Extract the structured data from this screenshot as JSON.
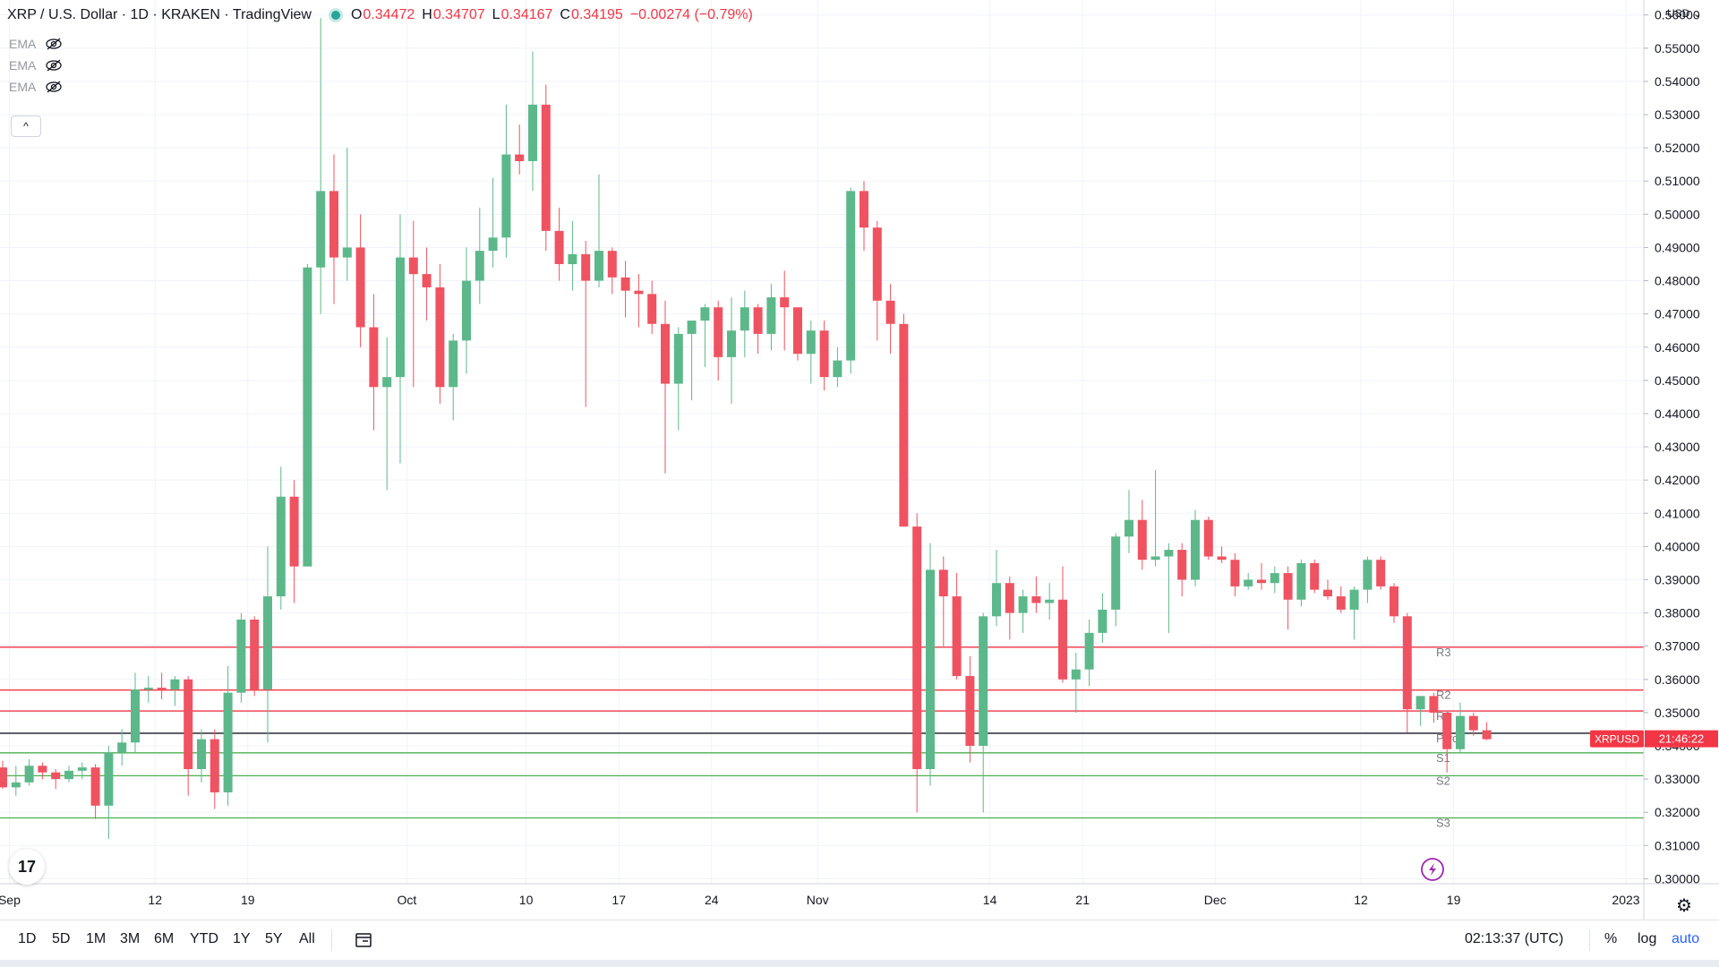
{
  "header": {
    "title": "XRP / U.S. Dollar · 1D · KRAKEN · TradingView",
    "ohlc": [
      {
        "k": "O",
        "v": "0.34472"
      },
      {
        "k": "H",
        "v": "0.34707"
      },
      {
        "k": "L",
        "v": "0.34167"
      },
      {
        "k": "C",
        "v": "0.34195"
      }
    ],
    "change": "−0.00274 (−0.79%)"
  },
  "indicators": [
    {
      "label": "EMA"
    },
    {
      "label": "EMA"
    },
    {
      "label": "EMA"
    }
  ],
  "collapse_label": "^",
  "logo_label": "17",
  "currency_label": "USD",
  "price_tag": {
    "symbol": "XRPUSD",
    "countdown": "21:46:22"
  },
  "bottom": {
    "ranges": [
      "1D",
      "5D",
      "1M",
      "3M",
      "6M",
      "YTD",
      "1Y",
      "5Y",
      "All"
    ],
    "time": "02:13:37 (UTC)",
    "percent": "%",
    "log": "log",
    "auto": "auto"
  },
  "colors": {
    "up": "#26a69a",
    "up_body": "#5cb88a",
    "down": "#f23645",
    "down_body": "#ef5361",
    "resistance": "#f23645",
    "support": "#4caf50",
    "pivot": "#131722",
    "accent": "#9c27b0"
  },
  "chart_data": {
    "type": "candlestick",
    "y_ticks": [
      "0.56000",
      "0.55000",
      "0.54000",
      "0.53000",
      "0.52000",
      "0.51000",
      "0.50000",
      "0.49000",
      "0.48000",
      "0.47000",
      "0.46000",
      "0.45000",
      "0.44000",
      "0.43000",
      "0.42000",
      "0.41000",
      "0.40000",
      "0.39000",
      "0.38000",
      "0.37000",
      "0.36000",
      "0.35000",
      "0.34000",
      "0.33000",
      "0.32000",
      "0.31000",
      "0.30000"
    ],
    "ylim": [
      0.2985,
      0.5645
    ],
    "x_ticks": [
      {
        "label": "Sep",
        "index": 0.5
      },
      {
        "label": "12",
        "index": 11.5
      },
      {
        "label": "19",
        "index": 18.5
      },
      {
        "label": "Oct",
        "index": 30.5
      },
      {
        "label": "10",
        "index": 39.5
      },
      {
        "label": "17",
        "index": 46.5
      },
      {
        "label": "24",
        "index": 53.5
      },
      {
        "label": "Nov",
        "index": 61.5
      },
      {
        "label": "14",
        "index": 74.5
      },
      {
        "label": "21",
        "index": 81.5
      },
      {
        "label": "Dec",
        "index": 91.5
      },
      {
        "label": "12",
        "index": 102.5
      },
      {
        "label": "19",
        "index": 109.5
      },
      {
        "label": "2023",
        "index": 122.5
      }
    ],
    "ohlc": [
      [
        0.3335,
        0.3355,
        0.327,
        0.3275
      ],
      [
        0.3275,
        0.334,
        0.325,
        0.329
      ],
      [
        0.329,
        0.336,
        0.328,
        0.334
      ],
      [
        0.334,
        0.335,
        0.33,
        0.332
      ],
      [
        0.332,
        0.333,
        0.327,
        0.33
      ],
      [
        0.33,
        0.334,
        0.329,
        0.3325
      ],
      [
        0.3325,
        0.335,
        0.33,
        0.3335
      ],
      [
        0.3335,
        0.3345,
        0.318,
        0.322
      ],
      [
        0.322,
        0.34,
        0.312,
        0.338
      ],
      [
        0.338,
        0.345,
        0.334,
        0.341
      ],
      [
        0.341,
        0.362,
        0.338,
        0.357
      ],
      [
        0.357,
        0.361,
        0.353,
        0.3575
      ],
      [
        0.3575,
        0.362,
        0.354,
        0.357
      ],
      [
        0.357,
        0.361,
        0.352,
        0.36
      ],
      [
        0.36,
        0.361,
        0.325,
        0.333
      ],
      [
        0.333,
        0.345,
        0.329,
        0.342
      ],
      [
        0.342,
        0.345,
        0.321,
        0.326
      ],
      [
        0.326,
        0.364,
        0.322,
        0.356
      ],
      [
        0.356,
        0.38,
        0.353,
        0.378
      ],
      [
        0.378,
        0.379,
        0.355,
        0.357
      ],
      [
        0.357,
        0.4,
        0.341,
        0.385
      ],
      [
        0.385,
        0.424,
        0.381,
        0.415
      ],
      [
        0.415,
        0.42,
        0.383,
        0.394
      ],
      [
        0.394,
        0.485,
        0.394,
        0.484
      ],
      [
        0.484,
        0.559,
        0.47,
        0.507
      ],
      [
        0.507,
        0.518,
        0.473,
        0.487
      ],
      [
        0.487,
        0.52,
        0.48,
        0.49
      ],
      [
        0.49,
        0.5,
        0.46,
        0.466
      ],
      [
        0.466,
        0.476,
        0.435,
        0.448
      ],
      [
        0.448,
        0.463,
        0.417,
        0.451
      ],
      [
        0.451,
        0.5,
        0.425,
        0.487
      ],
      [
        0.487,
        0.498,
        0.448,
        0.482
      ],
      [
        0.482,
        0.49,
        0.468,
        0.478
      ],
      [
        0.478,
        0.485,
        0.443,
        0.448
      ],
      [
        0.448,
        0.464,
        0.438,
        0.462
      ],
      [
        0.462,
        0.49,
        0.452,
        0.48
      ],
      [
        0.48,
        0.502,
        0.473,
        0.489
      ],
      [
        0.489,
        0.511,
        0.484,
        0.493
      ],
      [
        0.493,
        0.533,
        0.487,
        0.518
      ],
      [
        0.518,
        0.527,
        0.512,
        0.516
      ],
      [
        0.516,
        0.549,
        0.507,
        0.533
      ],
      [
        0.533,
        0.539,
        0.489,
        0.495
      ],
      [
        0.495,
        0.502,
        0.48,
        0.485
      ],
      [
        0.485,
        0.498,
        0.477,
        0.488
      ],
      [
        0.488,
        0.492,
        0.442,
        0.48
      ],
      [
        0.48,
        0.512,
        0.478,
        0.489
      ],
      [
        0.489,
        0.49,
        0.476,
        0.481
      ],
      [
        0.481,
        0.486,
        0.469,
        0.477
      ],
      [
        0.477,
        0.482,
        0.466,
        0.476
      ],
      [
        0.476,
        0.48,
        0.464,
        0.467
      ],
      [
        0.467,
        0.474,
        0.422,
        0.449
      ],
      [
        0.449,
        0.466,
        0.435,
        0.464
      ],
      [
        0.464,
        0.468,
        0.444,
        0.468
      ],
      [
        0.468,
        0.473,
        0.454,
        0.472
      ],
      [
        0.472,
        0.474,
        0.45,
        0.457
      ],
      [
        0.457,
        0.475,
        0.443,
        0.465
      ],
      [
        0.465,
        0.477,
        0.457,
        0.472
      ],
      [
        0.472,
        0.473,
        0.458,
        0.464
      ],
      [
        0.464,
        0.479,
        0.459,
        0.475
      ],
      [
        0.475,
        0.483,
        0.459,
        0.472
      ],
      [
        0.472,
        0.472,
        0.456,
        0.458
      ],
      [
        0.458,
        0.468,
        0.449,
        0.465
      ],
      [
        0.465,
        0.468,
        0.447,
        0.451
      ],
      [
        0.451,
        0.46,
        0.448,
        0.456
      ],
      [
        0.456,
        0.508,
        0.452,
        0.507
      ],
      [
        0.507,
        0.51,
        0.489,
        0.496
      ],
      [
        0.496,
        0.498,
        0.462,
        0.474
      ],
      [
        0.474,
        0.479,
        0.458,
        0.467
      ],
      [
        0.467,
        0.47,
        0.406,
        0.406
      ],
      [
        0.406,
        0.41,
        0.32,
        0.333
      ],
      [
        0.333,
        0.401,
        0.328,
        0.393
      ],
      [
        0.393,
        0.397,
        0.37,
        0.385
      ],
      [
        0.385,
        0.392,
        0.36,
        0.361
      ],
      [
        0.361,
        0.367,
        0.335,
        0.34
      ],
      [
        0.34,
        0.38,
        0.32,
        0.379
      ],
      [
        0.379,
        0.399,
        0.376,
        0.389
      ],
      [
        0.389,
        0.391,
        0.372,
        0.38
      ],
      [
        0.38,
        0.387,
        0.374,
        0.385
      ],
      [
        0.385,
        0.391,
        0.38,
        0.383
      ],
      [
        0.383,
        0.389,
        0.378,
        0.384
      ],
      [
        0.384,
        0.394,
        0.359,
        0.36
      ],
      [
        0.36,
        0.368,
        0.35,
        0.363
      ],
      [
        0.363,
        0.378,
        0.358,
        0.374
      ],
      [
        0.374,
        0.386,
        0.371,
        0.381
      ],
      [
        0.381,
        0.404,
        0.376,
        0.403
      ],
      [
        0.403,
        0.417,
        0.398,
        0.408
      ],
      [
        0.408,
        0.414,
        0.393,
        0.396
      ],
      [
        0.396,
        0.423,
        0.394,
        0.397
      ],
      [
        0.397,
        0.401,
        0.374,
        0.399
      ],
      [
        0.399,
        0.401,
        0.385,
        0.39
      ],
      [
        0.39,
        0.411,
        0.388,
        0.408
      ],
      [
        0.408,
        0.409,
        0.396,
        0.397
      ],
      [
        0.397,
        0.4,
        0.395,
        0.396
      ],
      [
        0.396,
        0.398,
        0.385,
        0.388
      ],
      [
        0.388,
        0.392,
        0.387,
        0.39
      ],
      [
        0.39,
        0.395,
        0.387,
        0.389
      ],
      [
        0.389,
        0.394,
        0.386,
        0.392
      ],
      [
        0.392,
        0.394,
        0.375,
        0.384
      ],
      [
        0.384,
        0.396,
        0.382,
        0.395
      ],
      [
        0.395,
        0.396,
        0.386,
        0.387
      ],
      [
        0.387,
        0.39,
        0.384,
        0.385
      ],
      [
        0.385,
        0.388,
        0.38,
        0.381
      ],
      [
        0.381,
        0.388,
        0.372,
        0.387
      ],
      [
        0.387,
        0.397,
        0.383,
        0.396
      ],
      [
        0.396,
        0.397,
        0.387,
        0.388
      ],
      [
        0.388,
        0.389,
        0.377,
        0.379
      ],
      [
        0.379,
        0.38,
        0.344,
        0.351
      ],
      [
        0.351,
        0.355,
        0.346,
        0.355
      ],
      [
        0.355,
        0.356,
        0.347,
        0.35
      ],
      [
        0.35,
        0.35,
        0.332,
        0.339
      ],
      [
        0.339,
        0.353,
        0.338,
        0.349
      ],
      [
        0.349,
        0.35,
        0.343,
        0.3447
      ],
      [
        0.3447,
        0.3471,
        0.3417,
        0.342
      ]
    ],
    "levels": [
      {
        "label": "R3",
        "value": 0.3697,
        "kind": "resistance"
      },
      {
        "label": "R2",
        "value": 0.3568,
        "kind": "resistance"
      },
      {
        "label": "R1",
        "value": 0.3505,
        "kind": "resistance"
      },
      {
        "label": "Pivot",
        "value": 0.3438,
        "kind": "pivot"
      },
      {
        "label": "S1",
        "value": 0.3379,
        "kind": "support"
      },
      {
        "label": "S2",
        "value": 0.331,
        "kind": "support"
      },
      {
        "label": "S3",
        "value": 0.3183,
        "kind": "support"
      }
    ],
    "last_price": 0.342,
    "grid": true,
    "legend": "top-left"
  }
}
